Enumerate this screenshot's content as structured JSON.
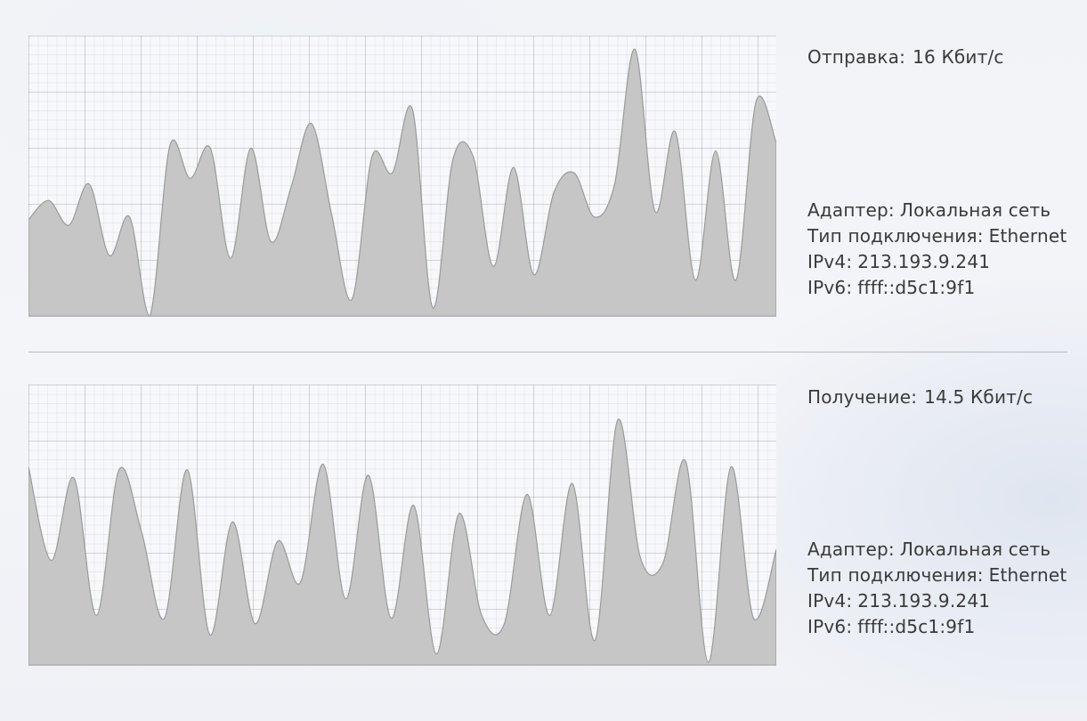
{
  "send": {
    "rate_label": "Отправка:",
    "rate_value": "16 Кбит/с",
    "adapter_label": "Адаптер:",
    "adapter_value": "Локальная сеть",
    "conn_type_label": "Тип подключения:",
    "conn_type_value": "Ethernet",
    "ipv4_label": "IPv4:",
    "ipv4_value": "213.193.9.241",
    "ipv6_label": "IPv6:",
    "ipv6_value": "ffff::d5c1:9f1",
    "graph": [
      35,
      42,
      33,
      48,
      22,
      36,
      0,
      62,
      50,
      61,
      21,
      61,
      27,
      47,
      70,
      37,
      6,
      58,
      52,
      75,
      3,
      57,
      58,
      18,
      54,
      15,
      45,
      52,
      36,
      48,
      97,
      38,
      67,
      13,
      60,
      13,
      78,
      63
    ]
  },
  "recv": {
    "rate_label": "Получение:",
    "rate_value": "14.5 Кбит/с",
    "adapter_label": "Адаптер:",
    "adapter_value": "Локальная сеть",
    "conn_type_label": "Тип подключения:",
    "conn_type_value": "Ethernet",
    "ipv4_label": "IPv4:",
    "ipv4_value": "213.193.9.241",
    "ipv6_label": "IPv6:",
    "ipv6_value": "ffff::d5c1:9f1",
    "graph": [
      72,
      38,
      68,
      18,
      71,
      48,
      17,
      71,
      11,
      52,
      15,
      45,
      30,
      73,
      24,
      69,
      17,
      58,
      4,
      55,
      18,
      15,
      62,
      18,
      66,
      9,
      89,
      39,
      37,
      74,
      1,
      72,
      17,
      42
    ]
  }
}
